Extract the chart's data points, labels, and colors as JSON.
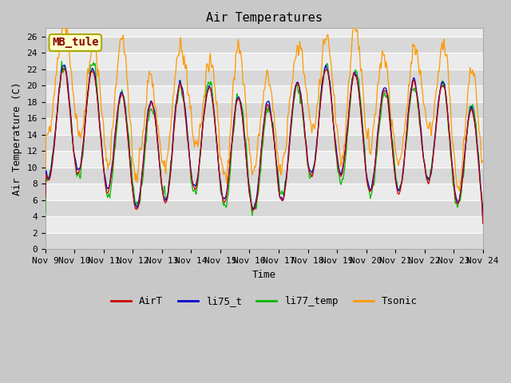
{
  "title": "Air Temperatures",
  "xlabel": "Time",
  "ylabel": "Air Temperature (C)",
  "ylim": [
    0,
    27
  ],
  "yticks": [
    0,
    2,
    4,
    6,
    8,
    10,
    12,
    14,
    16,
    18,
    20,
    22,
    24,
    26
  ],
  "x_labels": [
    "Nov 9",
    "Nov 10",
    "Nov 11",
    "Nov 12",
    "Nov 13",
    "Nov 14",
    "Nov 15",
    "Nov 16",
    "Nov 17",
    "Nov 18",
    "Nov 19",
    "Nov 20",
    "Nov 21",
    "Nov 22",
    "Nov 23",
    "Nov 24"
  ],
  "legend_labels": [
    "AirT",
    "li75_t",
    "li77_temp",
    "Tsonic"
  ],
  "line_colors": {
    "AirT": "#cc0000",
    "li75_t": "#0000cc",
    "li77_temp": "#00bb00",
    "Tsonic": "#ff9900"
  },
  "annotation_text": "MB_tule",
  "annotation_color": "#880000",
  "annotation_bg": "#ffffcc",
  "annotation_border": "#aaaa00",
  "band_light": "#ebebeb",
  "band_dark": "#d8d8d8",
  "grid_line_color": "#cccccc",
  "fig_bg": "#c8c8c8",
  "title_fontsize": 11,
  "axis_label_fontsize": 9,
  "tick_fontsize": 8,
  "legend_fontsize": 9
}
